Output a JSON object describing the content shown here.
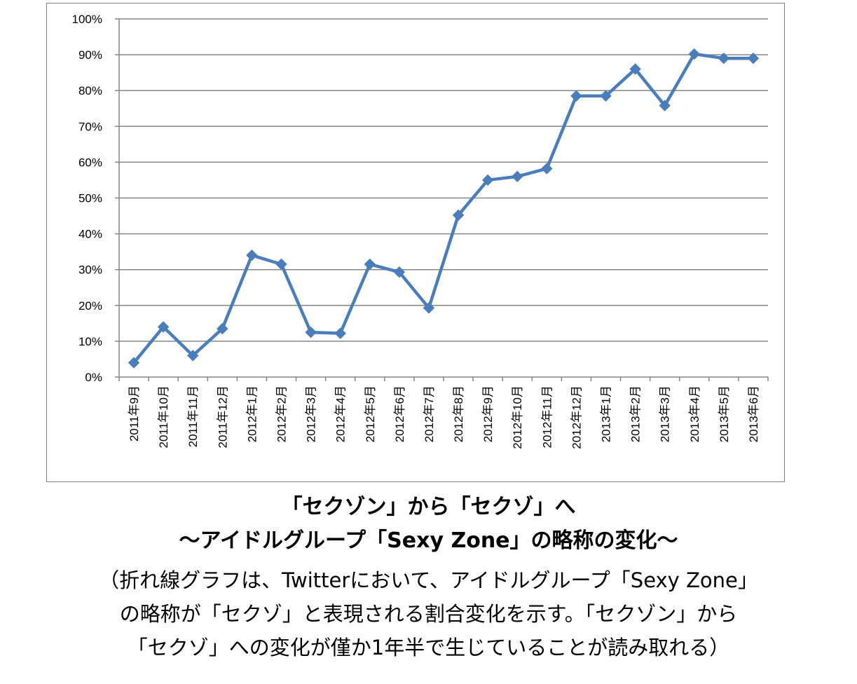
{
  "chart_data": {
    "type": "line",
    "categories": [
      "2011年9月",
      "2011年10月",
      "2011年11月",
      "2011年12月",
      "2012年1月",
      "2012年2月",
      "2012年3月",
      "2012年4月",
      "2012年5月",
      "2012年6月",
      "2012年7月",
      "2012年8月",
      "2012年9月",
      "2012年10月",
      "2012年11月",
      "2012年12月",
      "2013年1月",
      "2013年2月",
      "2013年3月",
      "2013年4月",
      "2013年5月",
      "2013年6月"
    ],
    "series": [
      {
        "values": [
          0.04,
          0.14,
          0.06,
          0.135,
          0.34,
          0.315,
          0.125,
          0.122,
          0.315,
          0.293,
          0.193,
          0.452,
          0.55,
          0.56,
          0.582,
          0.785,
          0.785,
          0.86,
          0.758,
          0.902,
          0.89,
          0.89
        ]
      }
    ],
    "ylim": [
      0,
      1
    ],
    "yticks": [
      "0%",
      "10%",
      "20%",
      "30%",
      "40%",
      "50%",
      "60%",
      "70%",
      "80%",
      "90%",
      "100%"
    ],
    "grid": true,
    "line_color": "#4a7ebb",
    "title": "",
    "xlabel": "",
    "ylabel": ""
  },
  "caption": {
    "title_line1": "「セクゾン」から「セクゾ」へ",
    "title_line2": "～アイドルグループ「Sexy Zone」の略称の変化～",
    "desc_line1": "（折れ線グラフは、Twitterにおいて、アイドルグループ「Sexy Zone」",
    "desc_line2": "の略称が「セクゾ」と表現される割合変化を示す。「セクゾン」から",
    "desc_line3": "「セクゾ」への変化が僅か1年半で生じていることが読み取れる）"
  }
}
